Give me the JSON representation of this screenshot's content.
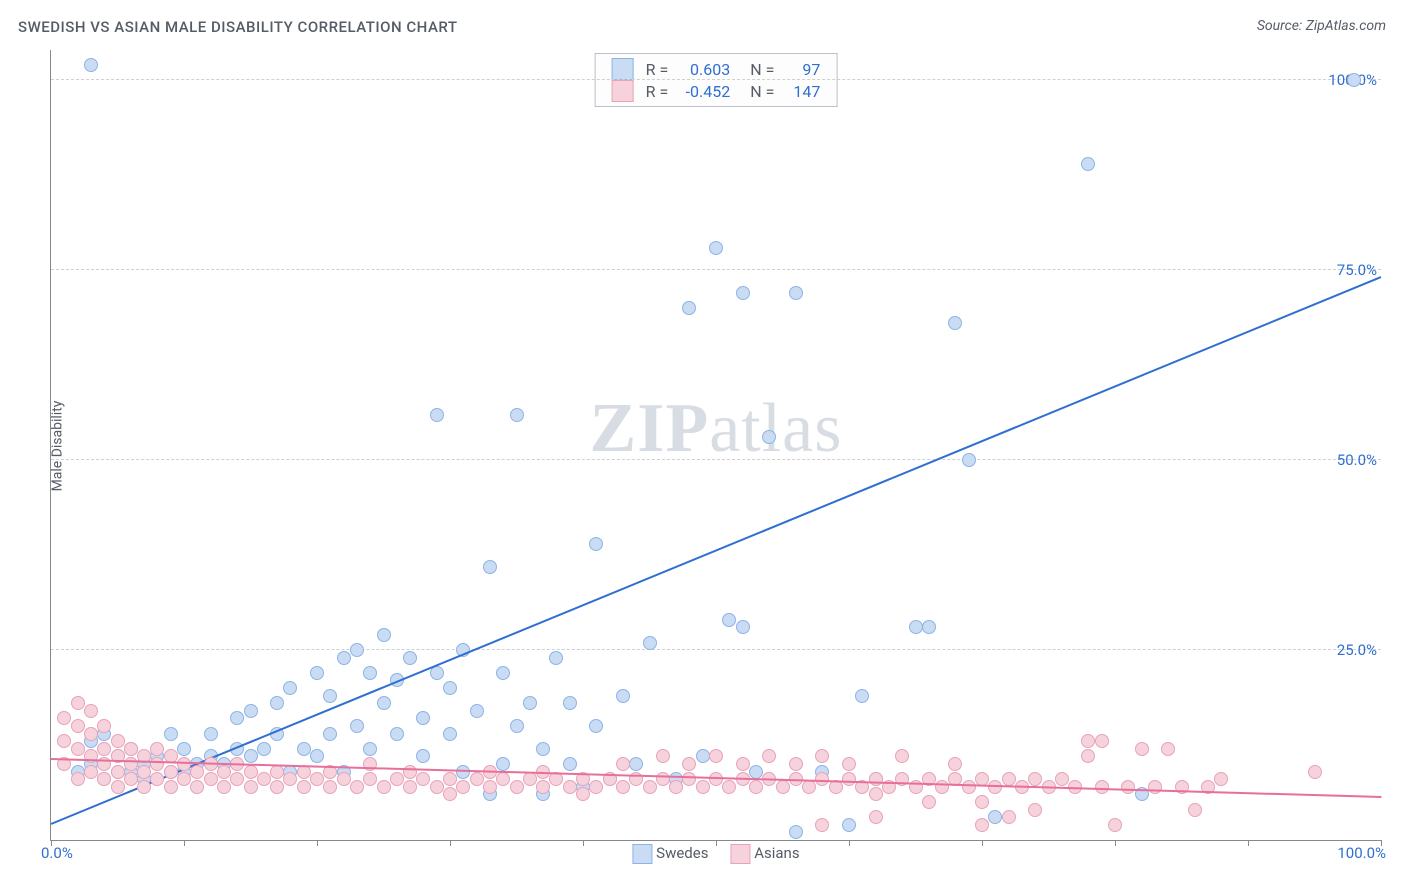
{
  "title": "SWEDISH VS ASIAN MALE DISABILITY CORRELATION CHART",
  "source_label": "Source: ZipAtlas.com",
  "ylabel": "Male Disability",
  "watermark": {
    "part1": "ZIP",
    "part2": "atlas"
  },
  "chart": {
    "type": "scatter",
    "xlim": [
      0,
      100
    ],
    "ylim": [
      0,
      104
    ],
    "xtick_labels": {
      "min": "0.0%",
      "max": "100.0%"
    },
    "xtick_positions": [
      0,
      10,
      20,
      30,
      40,
      50,
      60,
      70,
      80,
      90,
      100
    ],
    "ytick_labels": [
      "25.0%",
      "50.0%",
      "75.0%",
      "100.0%"
    ],
    "ytick_positions": [
      25,
      50,
      75,
      100
    ],
    "grid_color": "#d0d0d0",
    "axis_color": "#888888",
    "background_color": "#ffffff",
    "marker_radius": 7,
    "series": [
      {
        "name": "Swedes",
        "fill": "#c9dcf3",
        "stroke": "#8bb4e6",
        "line_color": "#2f6fd0",
        "R": "0.603",
        "N": "97",
        "trend": {
          "x1": 0,
          "y1": 2,
          "x2": 100,
          "y2": 74
        },
        "points": [
          [
            2,
            9
          ],
          [
            3,
            10
          ],
          [
            3,
            13
          ],
          [
            4,
            8
          ],
          [
            4,
            14
          ],
          [
            5,
            9
          ],
          [
            5,
            11
          ],
          [
            6,
            9
          ],
          [
            6,
            12
          ],
          [
            7,
            8
          ],
          [
            7,
            10
          ],
          [
            8,
            11
          ],
          [
            9,
            9
          ],
          [
            9,
            14
          ],
          [
            10,
            9
          ],
          [
            10,
            12
          ],
          [
            11,
            10
          ],
          [
            12,
            11
          ],
          [
            12,
            14
          ],
          [
            13,
            10
          ],
          [
            14,
            12
          ],
          [
            14,
            16
          ],
          [
            15,
            11
          ],
          [
            15,
            17
          ],
          [
            16,
            12
          ],
          [
            17,
            14
          ],
          [
            17,
            18
          ],
          [
            18,
            9
          ],
          [
            18,
            20
          ],
          [
            19,
            12
          ],
          [
            20,
            11
          ],
          [
            20,
            22
          ],
          [
            21,
            14
          ],
          [
            21,
            19
          ],
          [
            22,
            9
          ],
          [
            22,
            24
          ],
          [
            23,
            15
          ],
          [
            23,
            25
          ],
          [
            24,
            12
          ],
          [
            24,
            22
          ],
          [
            25,
            18
          ],
          [
            25,
            27
          ],
          [
            26,
            14
          ],
          [
            26,
            21
          ],
          [
            27,
            24
          ],
          [
            28,
            16
          ],
          [
            28,
            11
          ],
          [
            29,
            22
          ],
          [
            29,
            56
          ],
          [
            30,
            14
          ],
          [
            30,
            20
          ],
          [
            31,
            9
          ],
          [
            31,
            25
          ],
          [
            32,
            17
          ],
          [
            33,
            36
          ],
          [
            33,
            6
          ],
          [
            34,
            10
          ],
          [
            34,
            22
          ],
          [
            35,
            15
          ],
          [
            35,
            56
          ],
          [
            36,
            18
          ],
          [
            37,
            6
          ],
          [
            37,
            12
          ],
          [
            38,
            24
          ],
          [
            39,
            10
          ],
          [
            39,
            18
          ],
          [
            40,
            7
          ],
          [
            41,
            15
          ],
          [
            41,
            39
          ],
          [
            42,
            8
          ],
          [
            43,
            19
          ],
          [
            44,
            10
          ],
          [
            45,
            26
          ],
          [
            47,
            8
          ],
          [
            48,
            70
          ],
          [
            49,
            11
          ],
          [
            50,
            78
          ],
          [
            51,
            29
          ],
          [
            52,
            72
          ],
          [
            52,
            28
          ],
          [
            53,
            9
          ],
          [
            54,
            53
          ],
          [
            56,
            1
          ],
          [
            56,
            72
          ],
          [
            58,
            9
          ],
          [
            60,
            2
          ],
          [
            61,
            19
          ],
          [
            62,
            8
          ],
          [
            65,
            28
          ],
          [
            66,
            28
          ],
          [
            68,
            68
          ],
          [
            69,
            50
          ],
          [
            71,
            3
          ],
          [
            78,
            89
          ],
          [
            82,
            6
          ],
          [
            98,
            100
          ],
          [
            3,
            102
          ]
        ]
      },
      {
        "name": "Asians",
        "fill": "#f6d2dc",
        "stroke": "#e8a3b8",
        "line_color": "#e76f9a",
        "R": "-0.452",
        "N": "147",
        "trend": {
          "x1": 0,
          "y1": 10.5,
          "x2": 100,
          "y2": 5.5
        },
        "points": [
          [
            1,
            10
          ],
          [
            1,
            13
          ],
          [
            1,
            16
          ],
          [
            2,
            8
          ],
          [
            2,
            12
          ],
          [
            2,
            15
          ],
          [
            2,
            18
          ],
          [
            3,
            9
          ],
          [
            3,
            11
          ],
          [
            3,
            14
          ],
          [
            3,
            17
          ],
          [
            4,
            8
          ],
          [
            4,
            10
          ],
          [
            4,
            12
          ],
          [
            4,
            15
          ],
          [
            5,
            7
          ],
          [
            5,
            9
          ],
          [
            5,
            11
          ],
          [
            5,
            13
          ],
          [
            6,
            8
          ],
          [
            6,
            10
          ],
          [
            6,
            12
          ],
          [
            7,
            7
          ],
          [
            7,
            9
          ],
          [
            7,
            11
          ],
          [
            8,
            8
          ],
          [
            8,
            10
          ],
          [
            8,
            12
          ],
          [
            9,
            7
          ],
          [
            9,
            9
          ],
          [
            9,
            11
          ],
          [
            10,
            8
          ],
          [
            10,
            10
          ],
          [
            11,
            7
          ],
          [
            11,
            9
          ],
          [
            12,
            8
          ],
          [
            12,
            10
          ],
          [
            13,
            7
          ],
          [
            13,
            9
          ],
          [
            14,
            8
          ],
          [
            14,
            10
          ],
          [
            15,
            7
          ],
          [
            15,
            9
          ],
          [
            16,
            8
          ],
          [
            17,
            7
          ],
          [
            17,
            9
          ],
          [
            18,
            8
          ],
          [
            19,
            7
          ],
          [
            19,
            9
          ],
          [
            20,
            8
          ],
          [
            21,
            7
          ],
          [
            21,
            9
          ],
          [
            22,
            8
          ],
          [
            23,
            7
          ],
          [
            24,
            8
          ],
          [
            24,
            10
          ],
          [
            25,
            7
          ],
          [
            26,
            8
          ],
          [
            27,
            7
          ],
          [
            27,
            9
          ],
          [
            28,
            8
          ],
          [
            29,
            7
          ],
          [
            30,
            8
          ],
          [
            30,
            6
          ],
          [
            31,
            7
          ],
          [
            32,
            8
          ],
          [
            33,
            7
          ],
          [
            33,
            9
          ],
          [
            34,
            8
          ],
          [
            35,
            7
          ],
          [
            36,
            8
          ],
          [
            37,
            7
          ],
          [
            37,
            9
          ],
          [
            38,
            8
          ],
          [
            39,
            7
          ],
          [
            40,
            8
          ],
          [
            40,
            6
          ],
          [
            41,
            7
          ],
          [
            42,
            8
          ],
          [
            43,
            7
          ],
          [
            43,
            10
          ],
          [
            44,
            8
          ],
          [
            45,
            7
          ],
          [
            46,
            8
          ],
          [
            46,
            11
          ],
          [
            47,
            7
          ],
          [
            48,
            8
          ],
          [
            48,
            10
          ],
          [
            49,
            7
          ],
          [
            50,
            8
          ],
          [
            50,
            11
          ],
          [
            51,
            7
          ],
          [
            52,
            8
          ],
          [
            52,
            10
          ],
          [
            53,
            7
          ],
          [
            54,
            8
          ],
          [
            54,
            11
          ],
          [
            55,
            7
          ],
          [
            56,
            8
          ],
          [
            56,
            10
          ],
          [
            57,
            7
          ],
          [
            58,
            8
          ],
          [
            58,
            11
          ],
          [
            59,
            7
          ],
          [
            60,
            8
          ],
          [
            60,
            10
          ],
          [
            61,
            7
          ],
          [
            62,
            8
          ],
          [
            62,
            6
          ],
          [
            63,
            7
          ],
          [
            64,
            8
          ],
          [
            64,
            11
          ],
          [
            65,
            7
          ],
          [
            66,
            8
          ],
          [
            66,
            5
          ],
          [
            67,
            7
          ],
          [
            68,
            8
          ],
          [
            68,
            10
          ],
          [
            69,
            7
          ],
          [
            70,
            8
          ],
          [
            70,
            5
          ],
          [
            71,
            7
          ],
          [
            72,
            8
          ],
          [
            73,
            7
          ],
          [
            74,
            8
          ],
          [
            74,
            4
          ],
          [
            75,
            7
          ],
          [
            76,
            8
          ],
          [
            77,
            7
          ],
          [
            78,
            11
          ],
          [
            79,
            7
          ],
          [
            80,
            2
          ],
          [
            81,
            7
          ],
          [
            82,
            12
          ],
          [
            83,
            7
          ],
          [
            84,
            12
          ],
          [
            85,
            7
          ],
          [
            86,
            4
          ],
          [
            87,
            7
          ],
          [
            88,
            8
          ],
          [
            78,
            13
          ],
          [
            79,
            13
          ],
          [
            95,
            9
          ],
          [
            70,
            2
          ],
          [
            72,
            3
          ],
          [
            62,
            3
          ],
          [
            58,
            2
          ]
        ]
      }
    ]
  },
  "stats_legend": {
    "label_color": "#555c66",
    "value_color": "#2f6fd0",
    "R_label": "R =",
    "N_label": "N ="
  },
  "bottom_legend": {
    "label_color": "#555c66"
  }
}
